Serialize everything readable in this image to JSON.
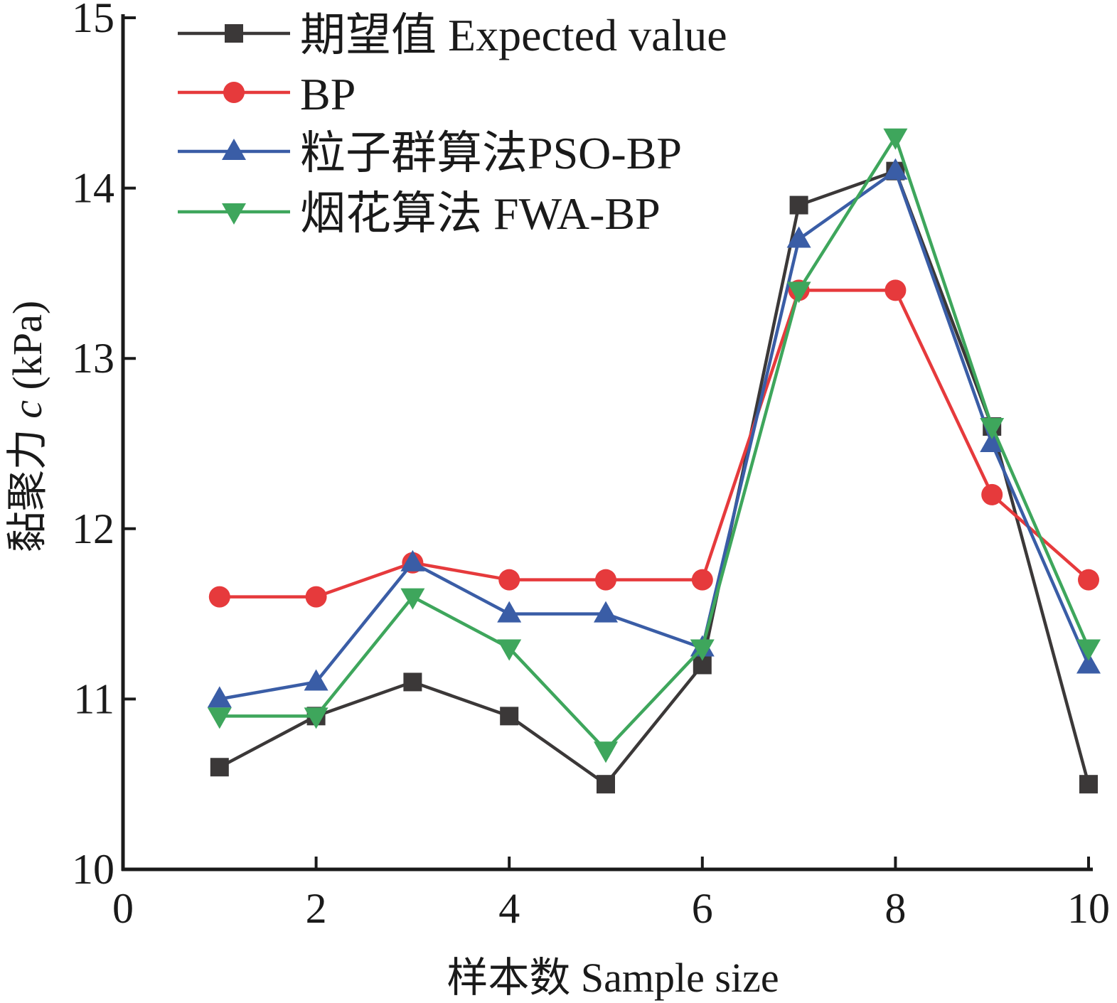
{
  "chart_data": {
    "type": "line",
    "title": "",
    "xlabel": "样本数 Sample size",
    "ylabel_prefix": "黏聚力",
    "ylabel_var": "c",
    "ylabel_unit": "(kPa)",
    "xlim": [
      0,
      10
    ],
    "ylim": [
      10,
      15
    ],
    "xticks": [
      "0",
      "2",
      "4",
      "6",
      "8",
      "10"
    ],
    "yticks": [
      "10",
      "11",
      "12",
      "13",
      "14",
      "15"
    ],
    "grid": false,
    "legend_position": "top-left",
    "x": [
      1,
      2,
      3,
      4,
      5,
      6,
      7,
      8,
      9,
      10
    ],
    "series": [
      {
        "name": "期望值  Expected value",
        "color": "#3b3838",
        "marker": "square",
        "values": [
          10.6,
          10.9,
          11.1,
          10.9,
          10.5,
          11.2,
          13.9,
          14.1,
          12.6,
          10.5
        ]
      },
      {
        "name": "BP",
        "color": "#e63a3c",
        "marker": "circle",
        "values": [
          11.6,
          11.6,
          11.8,
          11.7,
          11.7,
          11.7,
          13.4,
          13.4,
          12.2,
          11.7
        ]
      },
      {
        "name": "粒子群算法PSO-BP",
        "color": "#3a5da6",
        "marker": "triangle-up",
        "values": [
          11.0,
          11.1,
          11.8,
          11.5,
          11.5,
          11.3,
          13.7,
          14.1,
          12.5,
          11.2
        ]
      },
      {
        "name": "烟花算法 FWA-BP",
        "color": "#3ea65c",
        "marker": "triangle-down",
        "values": [
          10.9,
          10.9,
          11.6,
          11.3,
          10.7,
          11.3,
          13.4,
          14.3,
          12.6,
          11.3
        ]
      }
    ]
  }
}
